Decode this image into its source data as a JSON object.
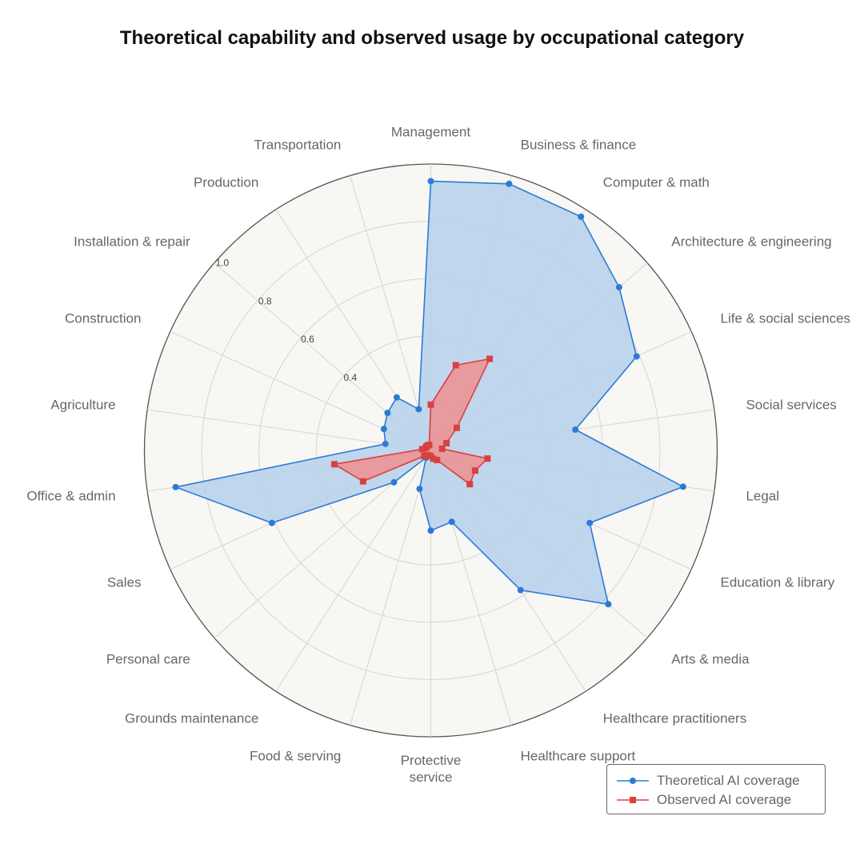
{
  "chart_data": {
    "type": "radar",
    "title": "Theoretical capability and observed usage by occupational category",
    "categories": [
      "Management",
      "Business & finance",
      "Computer & math",
      "Architecture & engineering",
      "Life & social sciences",
      "Social services",
      "Legal",
      "Education & library",
      "Arts & media",
      "Healthcare practitioners",
      "Healthcare support",
      "Protective service",
      "Food & serving",
      "Grounds maintenance",
      "Personal care",
      "Sales",
      "Office & admin",
      "Agriculture",
      "Construction",
      "Installation & repair",
      "Production",
      "Transportation"
    ],
    "series": [
      {
        "name": "Theoretical AI coverage",
        "color": "#2b7bd4",
        "fill": "#b6d0ea",
        "marker": "circle",
        "values": [
          0.94,
          0.97,
          0.97,
          0.87,
          0.79,
          0.51,
          0.89,
          0.61,
          0.82,
          0.58,
          0.26,
          0.28,
          0.14,
          0.03,
          0.17,
          0.61,
          0.9,
          0.16,
          0.18,
          0.2,
          0.22,
          0.15
        ]
      },
      {
        "name": "Observed AI coverage",
        "color": "#d94040",
        "fill": "#ef9090",
        "marker": "square",
        "values": [
          0.16,
          0.31,
          0.38,
          0.12,
          0.06,
          0.04,
          0.2,
          0.17,
          0.18,
          0.04,
          0.03,
          0.02,
          0.02,
          0.02,
          0.03,
          0.26,
          0.34,
          0.03,
          0.02,
          0.02,
          0.02,
          0.02
        ]
      }
    ],
    "ylim": [
      0,
      1.0
    ],
    "yticks": [
      0.4,
      0.6,
      0.8,
      {
        "value": 1.0,
        "label": "1.0"
      }
    ],
    "grid": true,
    "legend_position": "lower right"
  }
}
